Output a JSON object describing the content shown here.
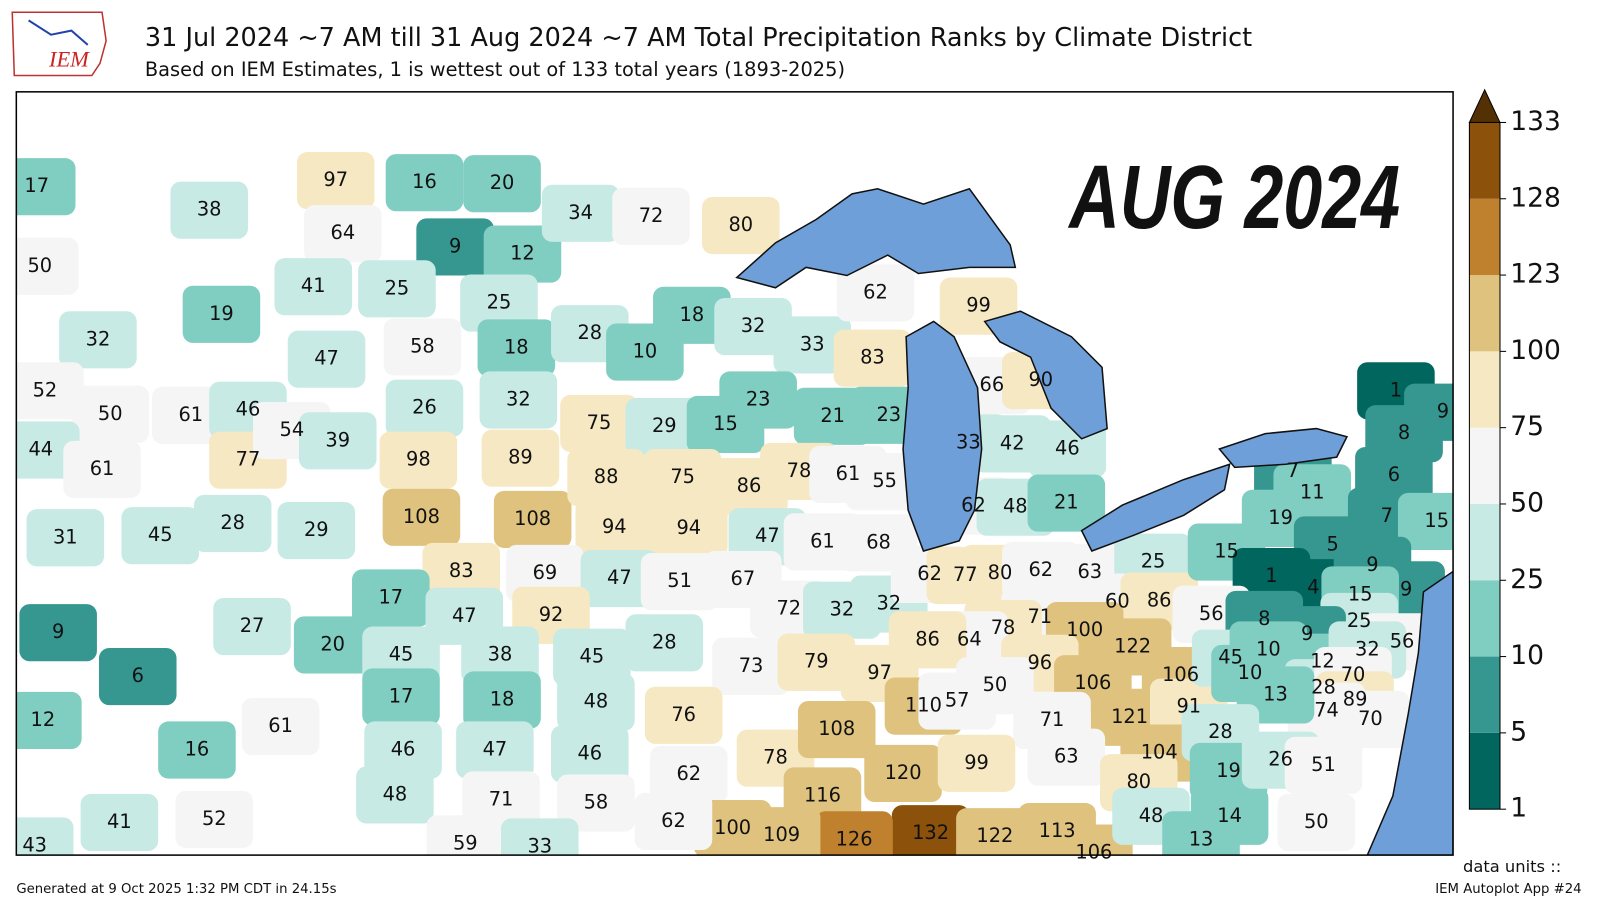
{
  "header": {
    "logo": "IEM",
    "title": "31 Jul 2024 ~7 AM till 31 Aug 2024 ~7 AM Total Precipitation Ranks by Climate District",
    "subtitle": "Based on IEM Estimates, 1 is wettest out of 133 total years (1893-2025)"
  },
  "map": {
    "annotation": "AUG 2024",
    "district_ranks": [
      17,
      38,
      50,
      19,
      32,
      97,
      16,
      20,
      64,
      9,
      12,
      41,
      25,
      25,
      34,
      72,
      80,
      47,
      58,
      18,
      28,
      10,
      18,
      32,
      33,
      83,
      62,
      99,
      52,
      50,
      61,
      46,
      44,
      61,
      77,
      54,
      39,
      26,
      32,
      75,
      29,
      15,
      23,
      21,
      23,
      66,
      90,
      98,
      89,
      33,
      42,
      46,
      31,
      45,
      28,
      29,
      108,
      108,
      88,
      75,
      86,
      78,
      61,
      55,
      94,
      94,
      47,
      61,
      68,
      62,
      48,
      21,
      83,
      69,
      47,
      51,
      67,
      17,
      47,
      92,
      9,
      27,
      20,
      6,
      12,
      61,
      16,
      45,
      38,
      45,
      17,
      18,
      48,
      46,
      47,
      46,
      28,
      73,
      72,
      32,
      32,
      79,
      97,
      76,
      62,
      78,
      62,
      77,
      80,
      62,
      63,
      25,
      60,
      86,
      71,
      78,
      64,
      86,
      100,
      122,
      96,
      106,
      106,
      121,
      91,
      110,
      57,
      50,
      71,
      108,
      120,
      99,
      63,
      104,
      80,
      116,
      132,
      126,
      122,
      113,
      106,
      109,
      100,
      62,
      48,
      71,
      58,
      41,
      52,
      43,
      59,
      33,
      48,
      14,
      13,
      50,
      1,
      9,
      8,
      6,
      7,
      11,
      19,
      7,
      15,
      15,
      5,
      1,
      4,
      9,
      9,
      15,
      25,
      56,
      8,
      9,
      56,
      45,
      10,
      10,
      12,
      32,
      28,
      70,
      89,
      74,
      70,
      13,
      28,
      19,
      26,
      51
    ],
    "colorbar": {
      "ticks": [
        1,
        5,
        10,
        25,
        50,
        75,
        100,
        123,
        128,
        133
      ],
      "colors": [
        "#01665e",
        "#35978f",
        "#80cdc1",
        "#c7eae5",
        "#f5f5f5",
        "#f6e8c3",
        "#dfc27d",
        "#bf812d",
        "#8c510a"
      ],
      "extend_color": "#543005",
      "units": "data units ::"
    }
  },
  "footer": {
    "generated": "Generated at 9 Oct 2025 1:32 PM CDT in 24.15s",
    "app": "IEM Autoplot App #24"
  }
}
